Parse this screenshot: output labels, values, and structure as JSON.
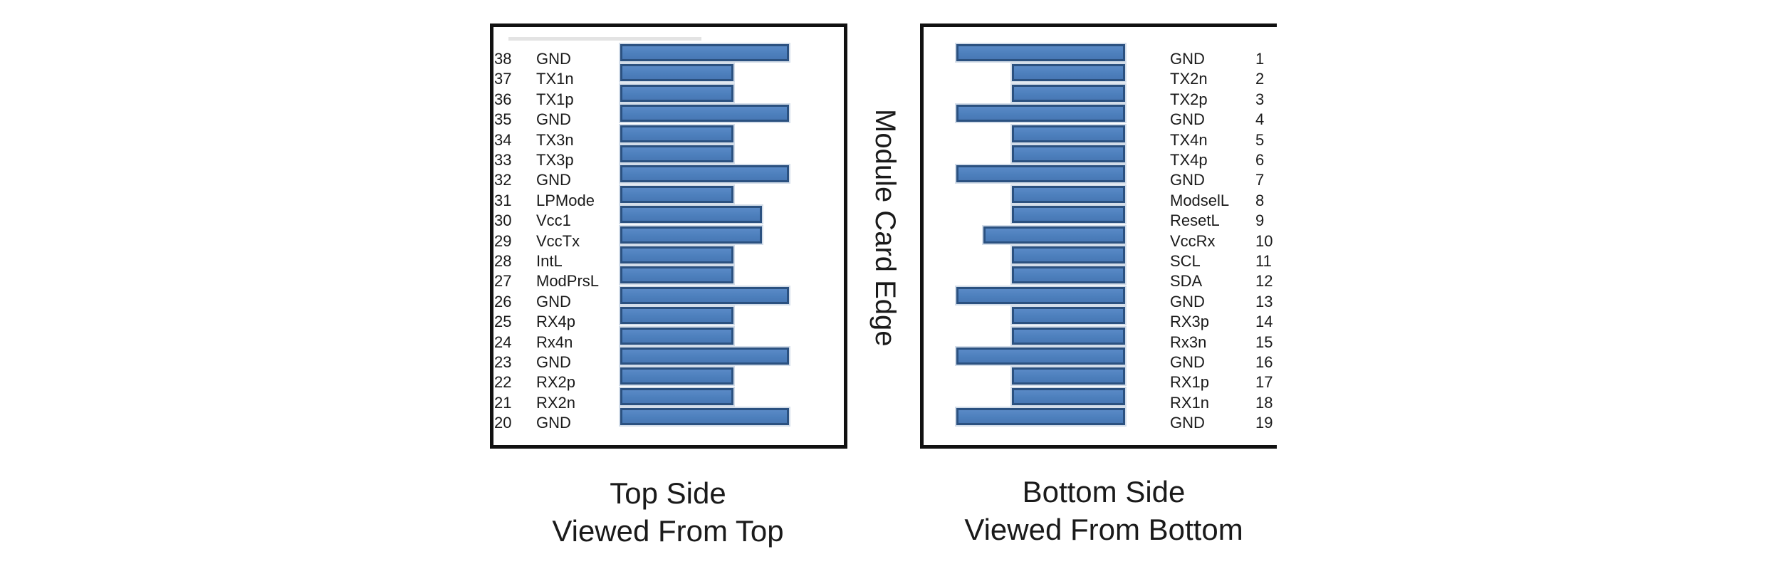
{
  "divider": {
    "label": "Module Card Edge"
  },
  "left_panel": {
    "caption": [
      "Top Side",
      "Viewed From Top"
    ],
    "pins": [
      {
        "num": "38",
        "name": "GND",
        "type": "gnd"
      },
      {
        "num": "37",
        "name": "TX1n",
        "type": "sig"
      },
      {
        "num": "36",
        "name": "TX1p",
        "type": "sig"
      },
      {
        "num": "35",
        "name": "GND",
        "type": "gnd"
      },
      {
        "num": "34",
        "name": "TX3n",
        "type": "sig"
      },
      {
        "num": "33",
        "name": "TX3p",
        "type": "sig"
      },
      {
        "num": "32",
        "name": "GND",
        "type": "gnd"
      },
      {
        "num": "31",
        "name": "LPMode",
        "type": "sig"
      },
      {
        "num": "30",
        "name": "Vcc1",
        "type": "vcc"
      },
      {
        "num": "29",
        "name": "VccTx",
        "type": "vcc"
      },
      {
        "num": "28",
        "name": "IntL",
        "type": "sig"
      },
      {
        "num": "27",
        "name": "ModPrsL",
        "type": "sig"
      },
      {
        "num": "26",
        "name": "GND",
        "type": "gnd"
      },
      {
        "num": "25",
        "name": "RX4p",
        "type": "sig"
      },
      {
        "num": "24",
        "name": "Rx4n",
        "type": "sig"
      },
      {
        "num": "23",
        "name": "GND",
        "type": "gnd"
      },
      {
        "num": "22",
        "name": "RX2p",
        "type": "sig"
      },
      {
        "num": "21",
        "name": "RX2n",
        "type": "sig"
      },
      {
        "num": "20",
        "name": "GND",
        "type": "gnd"
      }
    ]
  },
  "right_panel": {
    "caption": [
      "Bottom Side",
      "Viewed From Bottom"
    ],
    "pins": [
      {
        "num": "1",
        "name": "GND",
        "type": "gnd"
      },
      {
        "num": "2",
        "name": "TX2n",
        "type": "sig"
      },
      {
        "num": "3",
        "name": "TX2p",
        "type": "sig"
      },
      {
        "num": "4",
        "name": "GND",
        "type": "gnd"
      },
      {
        "num": "5",
        "name": "TX4n",
        "type": "sig"
      },
      {
        "num": "6",
        "name": "TX4p",
        "type": "sig"
      },
      {
        "num": "7",
        "name": "GND",
        "type": "gnd"
      },
      {
        "num": "8",
        "name": "ModselL",
        "type": "sig"
      },
      {
        "num": "9",
        "name": "ResetL",
        "type": "sig"
      },
      {
        "num": "10",
        "name": "VccRx",
        "type": "vcc"
      },
      {
        "num": "11",
        "name": "SCL",
        "type": "sig"
      },
      {
        "num": "12",
        "name": "SDA",
        "type": "sig"
      },
      {
        "num": "13",
        "name": "GND",
        "type": "gnd"
      },
      {
        "num": "14",
        "name": "RX3p",
        "type": "sig"
      },
      {
        "num": "15",
        "name": "Rx3n",
        "type": "sig"
      },
      {
        "num": "16",
        "name": "GND",
        "type": "gnd"
      },
      {
        "num": "17",
        "name": "RX1p",
        "type": "sig"
      },
      {
        "num": "18",
        "name": "RX1n",
        "type": "sig"
      },
      {
        "num": "19",
        "name": "GND",
        "type": "gnd"
      }
    ]
  },
  "colors": {
    "pad_fill": "#4d80bd",
    "pad_fill_light": "#5a8ac6",
    "pad_fill_dim": "#4878b4",
    "pad_border": "#2b5180",
    "pad_halo": "#d3dde9",
    "frame": "#111111",
    "text": "#1a1a1a",
    "remnant": "#e3e3e3"
  }
}
